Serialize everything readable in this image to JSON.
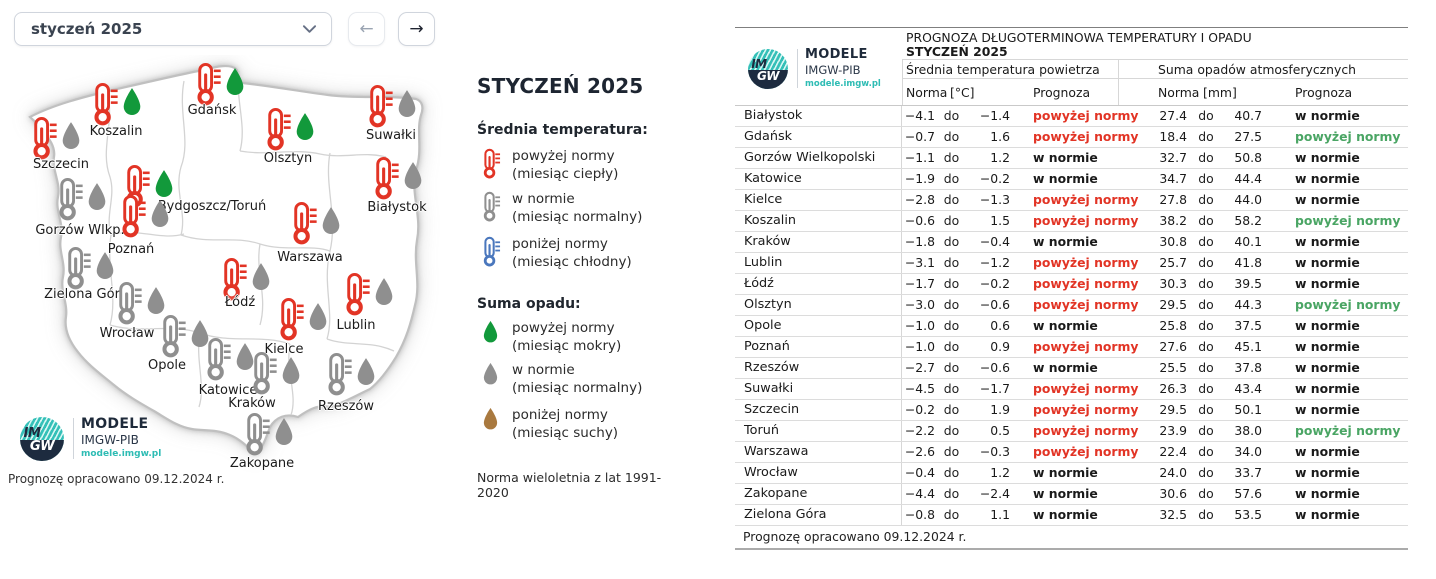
{
  "controls": {
    "month_select_value": "styczeń 2025",
    "prev_label": "←",
    "next_label": "→"
  },
  "colors": {
    "red": "#e23425",
    "green_drop": "#12993b",
    "green_text": "#4aa564",
    "gray": "#8f8f8f",
    "blue": "#4a77bd",
    "brown": "#a9793f",
    "teal": "#2ebcb4",
    "navy": "#1d2b3f"
  },
  "logo": {
    "line1": "MODELE",
    "line2": "IMGW-PIB",
    "line3": "modele.imgw.pl",
    "circle_top": "IM",
    "circle_bottom": "GW"
  },
  "map": {
    "credit": "Prognozę opracowano 09.12.2024 r.",
    "cities": [
      {
        "name": "Szczecin",
        "temp": "above",
        "precip": "norm",
        "icon": [
          20,
          61
        ],
        "label": [
          53,
          102
        ]
      },
      {
        "name": "Koszalin",
        "temp": "above",
        "precip": "above",
        "icon": [
          81,
          27
        ],
        "label": [
          108,
          69
        ]
      },
      {
        "name": "Gdańsk",
        "temp": "above",
        "precip": "above",
        "icon": [
          184,
          7
        ],
        "label": [
          204,
          48
        ]
      },
      {
        "name": "Olsztyn",
        "temp": "above",
        "precip": "above",
        "icon": [
          254,
          52
        ],
        "label": [
          280,
          96
        ]
      },
      {
        "name": "Suwałki",
        "temp": "above",
        "precip": "norm",
        "icon": [
          356,
          29
        ],
        "label": [
          383,
          73
        ]
      },
      {
        "name": "Białystok",
        "temp": "above",
        "precip": "norm",
        "icon": [
          362,
          101
        ],
        "label": [
          389,
          145
        ]
      },
      {
        "name": "Bydgoszcz/Toruń",
        "temp": "above",
        "precip": "above",
        "icon": [
          113,
          109
        ],
        "label": [
          204,
          144
        ]
      },
      {
        "name": "Gorzów Wlkp.",
        "temp": "norm",
        "precip": "norm",
        "icon": [
          46,
          122
        ],
        "label": [
          72,
          168
        ]
      },
      {
        "name": "Poznań",
        "temp": "above",
        "precip": "norm",
        "icon": [
          109,
          139
        ],
        "label": [
          123,
          187
        ]
      },
      {
        "name": "Warszawa",
        "temp": "above",
        "precip": "norm",
        "icon": [
          280,
          146
        ],
        "label": [
          302,
          195
        ]
      },
      {
        "name": "Zielona Góra",
        "temp": "norm",
        "precip": "norm",
        "icon": [
          54,
          191
        ],
        "label": [
          78,
          232
        ]
      },
      {
        "name": "Łódź",
        "temp": "above",
        "precip": "norm",
        "icon": [
          210,
          202
        ],
        "label": [
          232,
          240
        ]
      },
      {
        "name": "Wrocław",
        "temp": "norm",
        "precip": "norm",
        "icon": [
          105,
          226
        ],
        "label": [
          119,
          271
        ]
      },
      {
        "name": "Lublin",
        "temp": "above",
        "precip": "norm",
        "icon": [
          333,
          217
        ],
        "label": [
          348,
          263
        ]
      },
      {
        "name": "Opole",
        "temp": "norm",
        "precip": "norm",
        "icon": [
          149,
          259
        ],
        "label": [
          159,
          303
        ]
      },
      {
        "name": "Kielce",
        "temp": "above",
        "precip": "norm",
        "icon": [
          267,
          242
        ],
        "label": [
          276,
          287
        ]
      },
      {
        "name": "Katowice",
        "temp": "norm",
        "precip": "norm",
        "icon": [
          194,
          282
        ],
        "label": [
          220,
          328
        ]
      },
      {
        "name": "Kraków",
        "temp": "norm",
        "precip": "norm",
        "icon": [
          240,
          296
        ],
        "label": [
          244,
          341
        ]
      },
      {
        "name": "Rzeszów",
        "temp": "norm",
        "precip": "norm",
        "icon": [
          315,
          297
        ],
        "label": [
          338,
          344
        ]
      },
      {
        "name": "Zakopane",
        "temp": "norm",
        "precip": "norm",
        "icon": [
          233,
          357
        ],
        "label": [
          254,
          401
        ]
      }
    ]
  },
  "legend": {
    "title": "STYCZEŃ 2025",
    "temp_heading": "Średnia temperatura:",
    "temp_items": [
      {
        "line1": "powyżej normy",
        "line2": "(miesiąc ciepły)",
        "color": "#e23425"
      },
      {
        "line1": "w normie",
        "line2": "(miesiąc normalny)",
        "color": "#8f8f8f"
      },
      {
        "line1": "poniżej normy",
        "line2": "(miesiąc chłodny)",
        "color": "#4a77bd"
      }
    ],
    "precip_heading": "Suma opadu:",
    "precip_items": [
      {
        "line1": "powyżej normy",
        "line2": "(miesiąc mokry)",
        "color": "#12993b"
      },
      {
        "line1": "w normie",
        "line2": "(miesiąc normalny)",
        "color": "#8f8f8f"
      },
      {
        "line1": "poniżej normy",
        "line2": "(miesiąc suchy)",
        "color": "#a9793f"
      }
    ],
    "footnote": "Norma wieloletnia z lat 1991-2020"
  },
  "table": {
    "title_line1": "PROGNOZA DŁUGOTERMINOWA TEMPERATURY I OPADU",
    "title_line2": "STYCZEŃ 2025",
    "temp_section": "Średnia temperatura powietrza",
    "precip_section": "Suma opadów atmosferycznych",
    "cols": {
      "norma": "Norma",
      "unit_temp": "[°C]",
      "unit_precip": "[mm]",
      "prognoza": "Prognoza",
      "do": "do"
    },
    "rows": [
      {
        "city": "Białystok",
        "t_min": "−4.1",
        "t_max": "−1.4",
        "t_prog": "powyżej normy",
        "p_min": "27.4",
        "p_max": "40.7",
        "p_prog": "w normie"
      },
      {
        "city": "Gdańsk",
        "t_min": "−0.7",
        "t_max": "1.6",
        "t_prog": "powyżej normy",
        "p_min": "18.4",
        "p_max": "27.5",
        "p_prog": "powyżej normy"
      },
      {
        "city": "Gorzów Wielkopolski",
        "t_min": "−1.1",
        "t_max": "1.2",
        "t_prog": "w normie",
        "p_min": "32.7",
        "p_max": "50.8",
        "p_prog": "w normie"
      },
      {
        "city": "Katowice",
        "t_min": "−1.9",
        "t_max": "−0.2",
        "t_prog": "w normie",
        "p_min": "34.7",
        "p_max": "44.4",
        "p_prog": "w normie"
      },
      {
        "city": "Kielce",
        "t_min": "−2.8",
        "t_max": "−1.3",
        "t_prog": "powyżej normy",
        "p_min": "27.8",
        "p_max": "44.0",
        "p_prog": "w normie"
      },
      {
        "city": "Koszalin",
        "t_min": "−0.6",
        "t_max": "1.5",
        "t_prog": "powyżej normy",
        "p_min": "38.2",
        "p_max": "58.2",
        "p_prog": "powyżej normy"
      },
      {
        "city": "Kraków",
        "t_min": "−1.8",
        "t_max": "−0.4",
        "t_prog": "w normie",
        "p_min": "30.8",
        "p_max": "40.1",
        "p_prog": "w normie"
      },
      {
        "city": "Lublin",
        "t_min": "−3.1",
        "t_max": "−1.2",
        "t_prog": "powyżej normy",
        "p_min": "25.7",
        "p_max": "41.8",
        "p_prog": "w normie"
      },
      {
        "city": "Łódź",
        "t_min": "−1.7",
        "t_max": "−0.2",
        "t_prog": "powyżej normy",
        "p_min": "30.3",
        "p_max": "39.5",
        "p_prog": "w normie"
      },
      {
        "city": "Olsztyn",
        "t_min": "−3.0",
        "t_max": "−0.6",
        "t_prog": "powyżej normy",
        "p_min": "29.5",
        "p_max": "44.3",
        "p_prog": "powyżej normy"
      },
      {
        "city": "Opole",
        "t_min": "−1.0",
        "t_max": "0.6",
        "t_prog": "w normie",
        "p_min": "25.8",
        "p_max": "37.5",
        "p_prog": "w normie"
      },
      {
        "city": "Poznań",
        "t_min": "−1.0",
        "t_max": "0.9",
        "t_prog": "powyżej normy",
        "p_min": "27.6",
        "p_max": "45.1",
        "p_prog": "w normie"
      },
      {
        "city": "Rzeszów",
        "t_min": "−2.7",
        "t_max": "−0.6",
        "t_prog": "w normie",
        "p_min": "25.5",
        "p_max": "37.8",
        "p_prog": "w normie"
      },
      {
        "city": "Suwałki",
        "t_min": "−4.5",
        "t_max": "−1.7",
        "t_prog": "powyżej normy",
        "p_min": "26.3",
        "p_max": "43.4",
        "p_prog": "w normie"
      },
      {
        "city": "Szczecin",
        "t_min": "−0.2",
        "t_max": "1.9",
        "t_prog": "powyżej normy",
        "p_min": "29.5",
        "p_max": "50.1",
        "p_prog": "w normie"
      },
      {
        "city": "Toruń",
        "t_min": "−2.2",
        "t_max": "0.5",
        "t_prog": "powyżej normy",
        "p_min": "23.9",
        "p_max": "38.0",
        "p_prog": "powyżej normy"
      },
      {
        "city": "Warszawa",
        "t_min": "−2.6",
        "t_max": "−0.3",
        "t_prog": "powyżej normy",
        "p_min": "22.4",
        "p_max": "34.0",
        "p_prog": "w normie"
      },
      {
        "city": "Wrocław",
        "t_min": "−0.4",
        "t_max": "1.2",
        "t_prog": "w normie",
        "p_min": "24.0",
        "p_max": "33.7",
        "p_prog": "w normie"
      },
      {
        "city": "Zakopane",
        "t_min": "−4.4",
        "t_max": "−2.4",
        "t_prog": "w normie",
        "p_min": "30.6",
        "p_max": "57.6",
        "p_prog": "w normie"
      },
      {
        "city": "Zielona Góra",
        "t_min": "−0.8",
        "t_max": "1.1",
        "t_prog": "w normie",
        "p_min": "32.5",
        "p_max": "53.5",
        "p_prog": "w normie"
      }
    ],
    "footer": "Prognozę opracowano 09.12.2024 r."
  }
}
